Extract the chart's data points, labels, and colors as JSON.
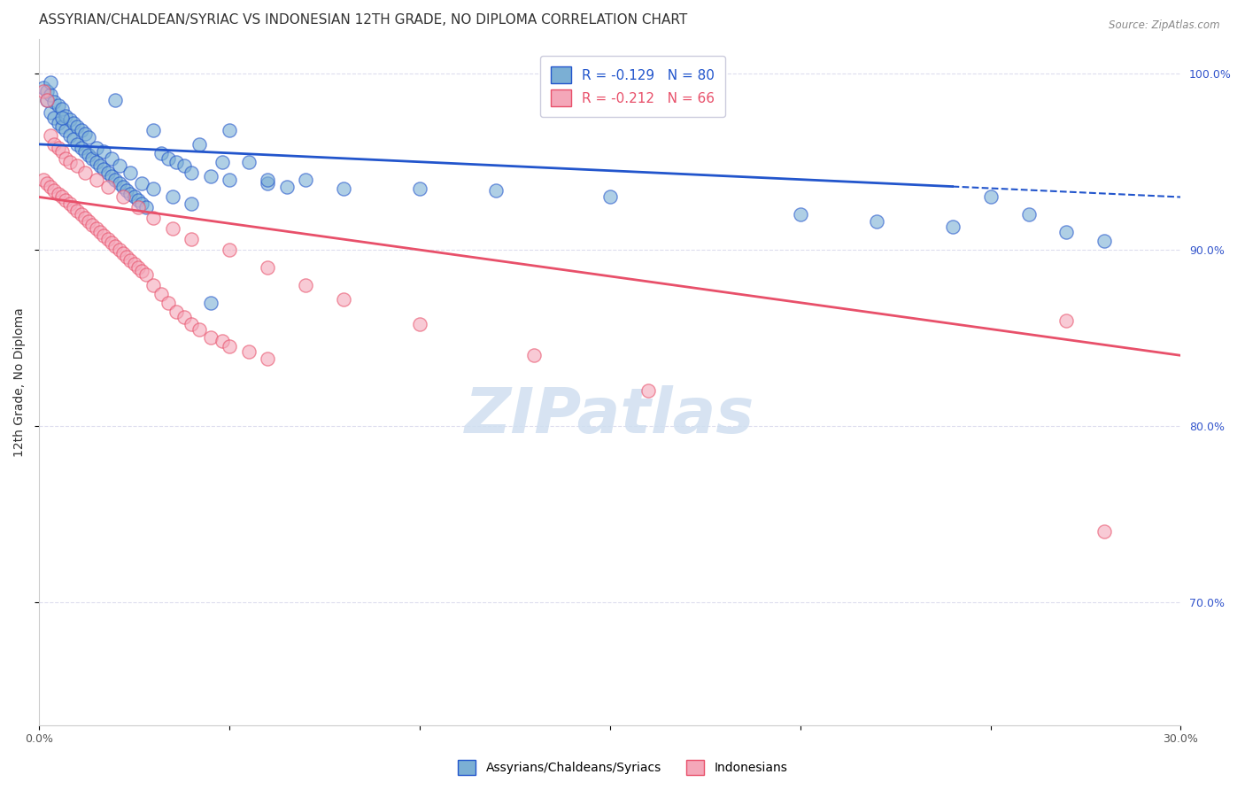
{
  "title": "ASSYRIAN/CHALDEAN/SYRIAC VS INDONESIAN 12TH GRADE, NO DIPLOMA CORRELATION CHART",
  "source": "Source: ZipAtlas.com",
  "xlabel": "",
  "ylabel": "12th Grade, No Diploma",
  "xlim": [
    0.0,
    0.3
  ],
  "ylim": [
    0.63,
    1.02
  ],
  "xticks": [
    0.0,
    0.05,
    0.1,
    0.15,
    0.2,
    0.25,
    0.3
  ],
  "xticklabels": [
    "0.0%",
    "",
    "",
    "",
    "",
    "",
    "30.0%"
  ],
  "ytick_positions": [
    0.7,
    0.8,
    0.9,
    1.0
  ],
  "ytick_labels": [
    "70.0%",
    "80.0%",
    "90.0%",
    "100.0%"
  ],
  "blue_R": -0.129,
  "blue_N": 80,
  "pink_R": -0.212,
  "pink_N": 66,
  "blue_color": "#7bafd4",
  "pink_color": "#f4a7b9",
  "blue_line_color": "#2255cc",
  "pink_line_color": "#e8506a",
  "blue_scatter_x": [
    0.002,
    0.003,
    0.004,
    0.005,
    0.006,
    0.007,
    0.008,
    0.009,
    0.01,
    0.011,
    0.012,
    0.013,
    0.014,
    0.015,
    0.016,
    0.017,
    0.018,
    0.019,
    0.02,
    0.021,
    0.022,
    0.023,
    0.024,
    0.025,
    0.026,
    0.027,
    0.028,
    0.03,
    0.032,
    0.034,
    0.036,
    0.038,
    0.04,
    0.042,
    0.045,
    0.048,
    0.05,
    0.055,
    0.06,
    0.065,
    0.001,
    0.002,
    0.003,
    0.004,
    0.005,
    0.006,
    0.007,
    0.008,
    0.009,
    0.01,
    0.011,
    0.012,
    0.013,
    0.015,
    0.017,
    0.019,
    0.021,
    0.024,
    0.027,
    0.03,
    0.035,
    0.04,
    0.05,
    0.06,
    0.07,
    0.08,
    0.1,
    0.12,
    0.15,
    0.2,
    0.22,
    0.24,
    0.25,
    0.26,
    0.27,
    0.28,
    0.003,
    0.006,
    0.02,
    0.045
  ],
  "blue_scatter_y": [
    0.985,
    0.978,
    0.975,
    0.972,
    0.97,
    0.968,
    0.965,
    0.963,
    0.96,
    0.958,
    0.956,
    0.954,
    0.952,
    0.95,
    0.948,
    0.946,
    0.944,
    0.942,
    0.94,
    0.938,
    0.936,
    0.934,
    0.932,
    0.93,
    0.928,
    0.926,
    0.924,
    0.968,
    0.955,
    0.952,
    0.95,
    0.948,
    0.944,
    0.96,
    0.942,
    0.95,
    0.94,
    0.95,
    0.938,
    0.936,
    0.992,
    0.99,
    0.988,
    0.984,
    0.982,
    0.98,
    0.976,
    0.974,
    0.972,
    0.97,
    0.968,
    0.966,
    0.964,
    0.958,
    0.956,
    0.952,
    0.948,
    0.944,
    0.938,
    0.935,
    0.93,
    0.926,
    0.968,
    0.94,
    0.94,
    0.935,
    0.935,
    0.934,
    0.93,
    0.92,
    0.916,
    0.913,
    0.93,
    0.92,
    0.91,
    0.905,
    0.995,
    0.975,
    0.985,
    0.87
  ],
  "pink_scatter_x": [
    0.001,
    0.002,
    0.003,
    0.004,
    0.005,
    0.006,
    0.007,
    0.008,
    0.009,
    0.01,
    0.011,
    0.012,
    0.013,
    0.014,
    0.015,
    0.016,
    0.017,
    0.018,
    0.019,
    0.02,
    0.021,
    0.022,
    0.023,
    0.024,
    0.025,
    0.026,
    0.027,
    0.028,
    0.03,
    0.032,
    0.034,
    0.036,
    0.038,
    0.04,
    0.042,
    0.045,
    0.048,
    0.05,
    0.055,
    0.06,
    0.001,
    0.002,
    0.003,
    0.004,
    0.005,
    0.006,
    0.007,
    0.008,
    0.01,
    0.012,
    0.015,
    0.018,
    0.022,
    0.026,
    0.03,
    0.035,
    0.04,
    0.05,
    0.06,
    0.07,
    0.08,
    0.1,
    0.13,
    0.16,
    0.27,
    0.28
  ],
  "pink_scatter_y": [
    0.94,
    0.938,
    0.936,
    0.934,
    0.932,
    0.93,
    0.928,
    0.926,
    0.924,
    0.922,
    0.92,
    0.918,
    0.916,
    0.914,
    0.912,
    0.91,
    0.908,
    0.906,
    0.904,
    0.902,
    0.9,
    0.898,
    0.896,
    0.894,
    0.892,
    0.89,
    0.888,
    0.886,
    0.88,
    0.875,
    0.87,
    0.865,
    0.862,
    0.858,
    0.855,
    0.85,
    0.848,
    0.845,
    0.842,
    0.838,
    0.99,
    0.985,
    0.965,
    0.96,
    0.958,
    0.956,
    0.952,
    0.95,
    0.948,
    0.944,
    0.94,
    0.936,
    0.93,
    0.924,
    0.918,
    0.912,
    0.906,
    0.9,
    0.89,
    0.88,
    0.872,
    0.858,
    0.84,
    0.82,
    0.86,
    0.74
  ],
  "legend_box_color": "#e8e8f0",
  "legend_border_color": "#ccccdd",
  "background_color": "#ffffff",
  "grid_color": "#ddddee",
  "watermark_text": "ZIPatlas",
  "watermark_color": "#d0dff0",
  "title_fontsize": 11,
  "axis_label_fontsize": 10,
  "tick_fontsize": 9,
  "legend_fontsize": 11
}
